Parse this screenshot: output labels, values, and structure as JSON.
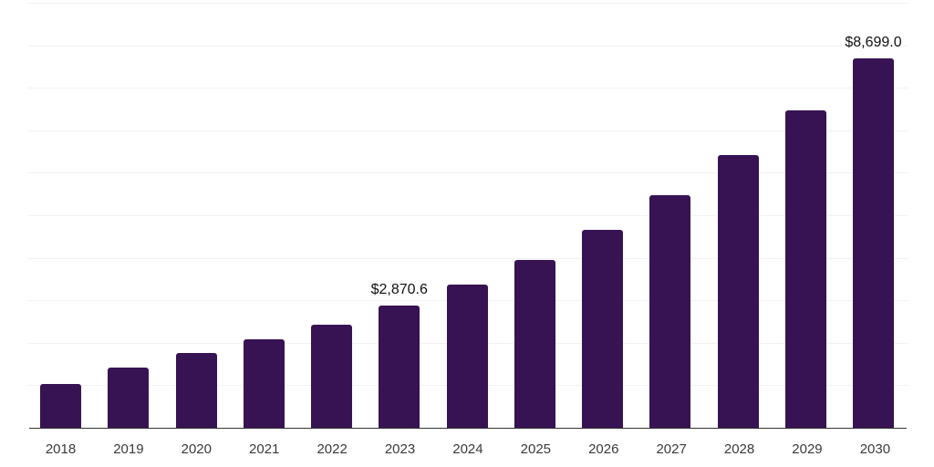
{
  "chart_data": {
    "type": "bar",
    "title": "",
    "xlabel": "",
    "ylabel": "",
    "categories": [
      "2018",
      "2019",
      "2020",
      "2021",
      "2022",
      "2023",
      "2024",
      "2025",
      "2026",
      "2027",
      "2028",
      "2029",
      "2030"
    ],
    "values": [
      1020,
      1420,
      1770,
      2075,
      2420,
      2870.6,
      3365,
      3955,
      4660,
      5470,
      6410,
      7470,
      8699.0
    ],
    "data_labels": [
      "",
      "",
      "",
      "",
      "",
      "$2,870.6",
      "",
      "",
      "",
      "",
      "",
      "",
      "$8,699.0"
    ],
    "ylim": [
      0,
      10000
    ],
    "grid": "horizontal",
    "gridline_interval": 1000,
    "legend_position": "none",
    "bar_color": "#371353",
    "gridline_color": "#f2f2f2",
    "axis_line_color": "#333333",
    "data_label_color": "#111111",
    "tick_label_color": "#3a3a3a",
    "background_color": "#ffffff"
  }
}
